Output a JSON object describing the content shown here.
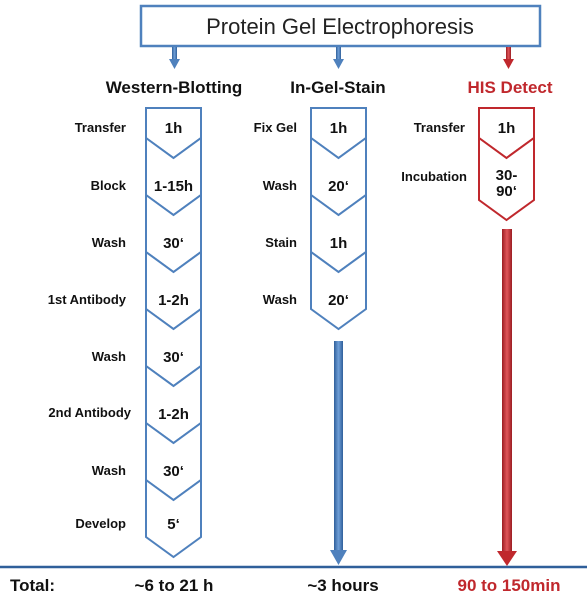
{
  "title": "Protein Gel Electrophoresis",
  "colors": {
    "blue": "#4f81bd",
    "blue_dark": "#2f5f9a",
    "red": "#c0282d",
    "red_dark": "#a01f24",
    "text": "#111111",
    "white": "#ffffff"
  },
  "columns": [
    {
      "header": "Western-Blotting",
      "color": "blue",
      "steps": [
        {
          "label": "Transfer",
          "duration": "1h"
        },
        {
          "label": "Block",
          "duration": "1-15h"
        },
        {
          "label": "Wash",
          "duration": "30‘"
        },
        {
          "label": "1st Antibody",
          "duration": "1-2h"
        },
        {
          "label": "Wash",
          "duration": "30‘"
        },
        {
          "label": "2nd Antibody",
          "duration": "1-2h"
        },
        {
          "label": "Wash",
          "duration": "30‘"
        },
        {
          "label": "Develop",
          "duration": "5‘"
        }
      ],
      "total": "~6 to 21 h"
    },
    {
      "header": "In-Gel-Stain",
      "color": "blue",
      "steps": [
        {
          "label": "Fix Gel",
          "duration": "1h"
        },
        {
          "label": "Wash",
          "duration": "20‘"
        },
        {
          "label": "Stain",
          "duration": "1h"
        },
        {
          "label": "Wash",
          "duration": "20‘"
        }
      ],
      "total": "~3 hours"
    },
    {
      "header": "HIS Detect",
      "color": "red",
      "steps": [
        {
          "label": "Transfer",
          "duration": "1h"
        },
        {
          "label": "Incubation",
          "duration": "30-\n90‘"
        }
      ],
      "total": "90 to 150min"
    }
  ],
  "total_label": "Total:"
}
